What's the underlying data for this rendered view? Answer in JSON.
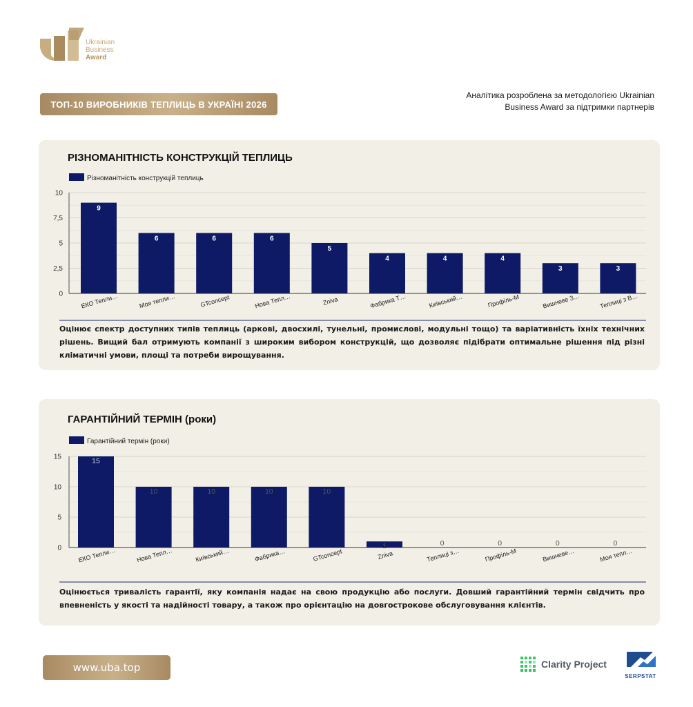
{
  "brand": {
    "logo_line1": "Ukrainian",
    "logo_line2": "Business",
    "logo_line3": "Award",
    "gold": "#b39260"
  },
  "header": {
    "title": "ТОП-10 ВИРОБНИКІВ ТЕПЛИЦЬ В УКРАЇНІ 2026",
    "method_note": "Аналітика розроблена за методологією Ukrainian Business Award за підтримки партнерів"
  },
  "sections": [
    {
      "title": "РІЗНОМАНІТНІСТЬ КОНСТРУКЦІЙ ТЕПЛИЦЬ",
      "description": "Оцінює спектр доступних типів теплиць (аркові, двосхилі, тунельні, промислові, модульні тощо) та варіативність їхніх технічних рішень. Вищий бал отримують компанії з широким вибором конструкцій, що дозволяє підібрати оптимальне рішення під різні кліматичні умови, площі та потреби вирощування."
    },
    {
      "title": "ГАРАНТІЙНИЙ ТЕРМІН (роки)",
      "description": "Оцінюється тривалість гарантії, яку компанія надає на свою продукцію або послуги. Довший гарантійний термін свідчить про впевненість у якості та надійності товару, а також про орієнтацію на довгострокове обслуговування клієнтів."
    }
  ],
  "chart_data": [
    {
      "type": "bar",
      "series": [
        {
          "name": "Різноманітність конструкцій теплиць",
          "values": [
            9,
            6,
            6,
            6,
            5,
            4,
            4,
            4,
            3,
            3
          ]
        }
      ],
      "categories": [
        "ЕКО Тепли…",
        "Моя тепли…",
        "GTconcept",
        "Нова Тепл…",
        "Zniva",
        "Фабрика Т…",
        "Київський…",
        "Профіль-М",
        "Вишневе З…",
        "Теплиці з В…"
      ],
      "ylim": [
        0,
        10
      ],
      "yticks": [
        "0",
        "2,5",
        "5",
        "7,5",
        "10"
      ],
      "ytick_values": [
        0,
        2.5,
        5,
        7.5,
        10
      ],
      "grid": true,
      "legend": "top-left",
      "bar_color": "#0e1a66",
      "label_position": "inside",
      "label_color": "#ffffff"
    },
    {
      "type": "bar",
      "series": [
        {
          "name": "Гарантійний термін (роки)",
          "values": [
            15,
            10,
            10,
            10,
            10,
            1,
            0,
            0,
            0,
            0
          ]
        }
      ],
      "categories": [
        "ЕКО Тепли…",
        "Нова Тепл…",
        "Київський…",
        "Фабрика…",
        "GTconcept",
        "Zniva",
        "Теплиці з…",
        "Профіль-М",
        "Вишневе…",
        "Моя тепл…"
      ],
      "ylim": [
        0,
        15
      ],
      "yticks": [
        "0",
        "5",
        "10",
        "15"
      ],
      "ytick_values": [
        0,
        5,
        10,
        15
      ],
      "grid": true,
      "legend": "top-left",
      "bar_color": "#0e1a66",
      "label_position": "above",
      "label_color": "#555555"
    }
  ],
  "footer": {
    "url": "www.uba.top",
    "partner1": "Clarity Project",
    "partner2": "SERPSTAT"
  }
}
